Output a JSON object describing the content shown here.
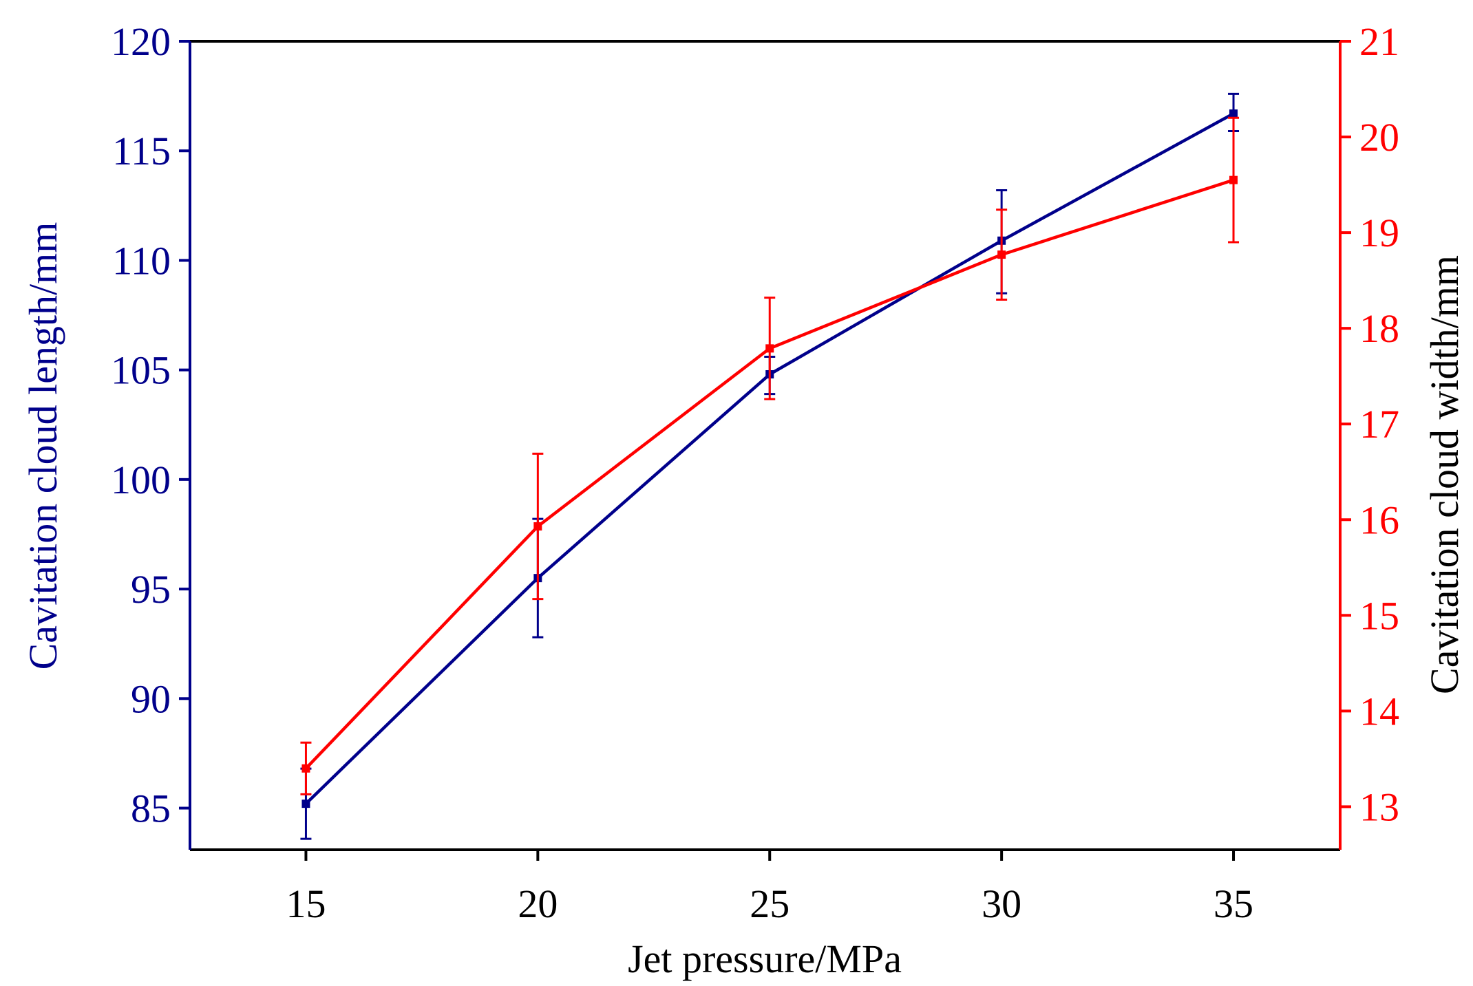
{
  "colors": {
    "left": "#00008B",
    "right": "#FF0000",
    "frame": "#000000"
  },
  "chart_data": {
    "type": "line",
    "title": "",
    "xlabel": "Jet pressure/MPa",
    "ylabel_left": "Cavitation cloud length/mm",
    "ylabel_right": "Cavitation cloud width/mm",
    "xlim": [
      12.5,
      37.3
    ],
    "ylim_left": [
      83.1,
      120
    ],
    "ylim_right": [
      12.55,
      21
    ],
    "x_ticks": [
      15,
      20,
      25,
      30,
      35
    ],
    "y_ticks_left": [
      85,
      90,
      95,
      100,
      105,
      110,
      115,
      120
    ],
    "y_ticks_right": [
      13,
      14,
      15,
      16,
      17,
      18,
      19,
      20,
      21
    ],
    "x": [
      15,
      20,
      25,
      30,
      35
    ],
    "series": [
      {
        "name": "Cavitation cloud length",
        "axis": "left",
        "values": [
          85.2,
          95.5,
          104.8,
          110.9,
          116.7
        ],
        "err_plus": [
          1.6,
          2.7,
          0.8,
          2.3,
          0.9
        ],
        "err_minus": [
          1.6,
          2.7,
          0.9,
          2.4,
          0.8
        ]
      },
      {
        "name": "Cavitation cloud width",
        "axis": "right",
        "values": [
          13.4,
          15.93,
          17.79,
          18.77,
          19.55
        ],
        "err_plus": [
          0.27,
          0.76,
          0.53,
          0.47,
          0.65
        ],
        "err_minus": [
          0.27,
          0.76,
          0.53,
          0.47,
          0.65
        ]
      }
    ]
  }
}
